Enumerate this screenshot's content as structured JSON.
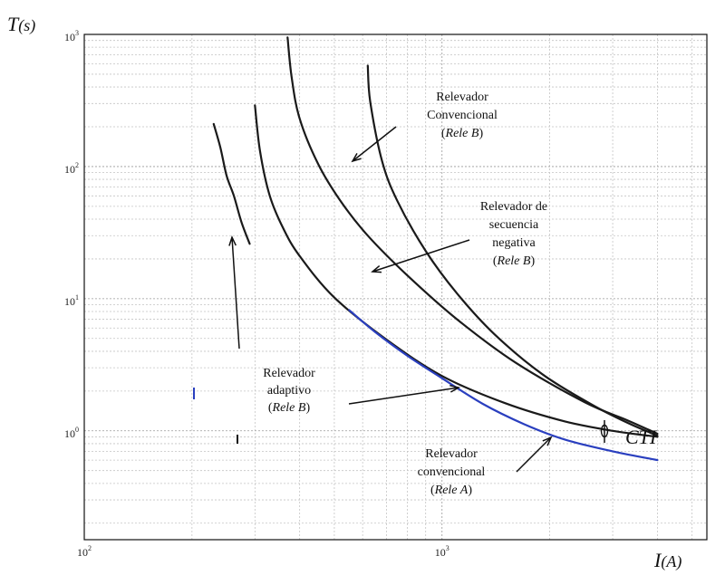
{
  "chart_data": {
    "type": "line",
    "x_scale": "log",
    "y_scale": "log",
    "xlim": [
      100,
      5500
    ],
    "ylim": [
      0.15,
      1000
    ],
    "grid": true,
    "ylabel": {
      "main": "T",
      "unit": "(s)"
    },
    "xlabel": {
      "main": "I",
      "unit": "(A)"
    },
    "x_ticks": [
      {
        "value": 100,
        "base": "10",
        "exp": "2"
      },
      {
        "value": 1000,
        "base": "10",
        "exp": "3"
      }
    ],
    "y_ticks": [
      {
        "value": 1,
        "base": "10",
        "exp": "0"
      },
      {
        "value": 10,
        "base": "10",
        "exp": "1"
      },
      {
        "value": 100,
        "base": "10",
        "exp": "2"
      },
      {
        "value": 1000,
        "base": "10",
        "exp": "3"
      }
    ],
    "series": [
      {
        "color": "#1a1a1a",
        "points": [
          [
            230,
            210
          ],
          [
            240,
            140
          ],
          [
            250,
            85
          ],
          [
            262,
            60
          ],
          [
            275,
            38
          ],
          [
            290,
            26
          ]
        ]
      },
      {
        "color": "#1a1a1a",
        "points": [
          [
            300,
            290
          ],
          [
            310,
            130
          ],
          [
            330,
            60
          ],
          [
            360,
            34
          ],
          [
            400,
            21
          ],
          [
            500,
            10.2
          ],
          [
            700,
            4.9
          ],
          [
            1000,
            2.6
          ],
          [
            1500,
            1.62
          ],
          [
            2200,
            1.18
          ],
          [
            3000,
            1.0
          ],
          [
            4000,
            0.9
          ]
        ]
      },
      {
        "color": "#1a1a1a",
        "points": [
          [
            370,
            950
          ],
          [
            380,
            470
          ],
          [
            400,
            230
          ],
          [
            450,
            105
          ],
          [
            520,
            55
          ],
          [
            620,
            30
          ],
          [
            800,
            15
          ],
          [
            1100,
            7
          ],
          [
            1600,
            3.3
          ],
          [
            2500,
            1.65
          ],
          [
            3300,
            1.2
          ],
          [
            4000,
            0.95
          ]
        ]
      },
      {
        "color": "#1a1a1a",
        "points": [
          [
            620,
            580
          ],
          [
            630,
            310
          ],
          [
            680,
            110
          ],
          [
            750,
            55
          ],
          [
            900,
            23
          ],
          [
            1100,
            11
          ],
          [
            1400,
            5.4
          ],
          [
            1900,
            2.7
          ],
          [
            2600,
            1.6
          ],
          [
            3300,
            1.15
          ],
          [
            4000,
            0.92
          ]
        ]
      },
      {
        "color": "#2a3fbf",
        "points": [
          [
            550,
            8.2
          ],
          [
            650,
            5.6
          ],
          [
            800,
            3.7
          ],
          [
            1000,
            2.5
          ],
          [
            1300,
            1.6
          ],
          [
            1700,
            1.12
          ],
          [
            2200,
            0.86
          ],
          [
            3000,
            0.7
          ],
          [
            4000,
            0.6
          ]
        ]
      }
    ],
    "annotations": [
      {
        "lines": [
          {
            "text": "Relevador"
          },
          {
            "text": "Convencional"
          },
          {
            "text": "(",
            "parts": [
              {
                "text": "(",
                "italic": false
              },
              {
                "text": "Rele B",
                "italic": true
              },
              {
                "text": ")",
                "italic": false
              }
            ]
          }
        ]
      },
      {
        "lines": [
          {
            "text": "Relevador de"
          },
          {
            "text": "secuencia"
          },
          {
            "text": "negativa"
          },
          {
            "text": "(Rele B)",
            "parts": [
              {
                "text": "(",
                "italic": false
              },
              {
                "text": "Rele B",
                "italic": true
              },
              {
                "text": ")",
                "italic": false
              }
            ]
          }
        ]
      },
      {
        "lines": [
          {
            "text": "Relevador"
          },
          {
            "text": "adaptivo"
          },
          {
            "text": "(Rele B)",
            "parts": [
              {
                "text": "(",
                "italic": false
              },
              {
                "text": "Rele B",
                "italic": true
              },
              {
                "text": ")",
                "italic": false
              }
            ]
          }
        ]
      },
      {
        "lines": [
          {
            "text": "Relevador"
          },
          {
            "text": "convencional"
          },
          {
            "text": "(Rele A)",
            "parts": [
              {
                "text": "(",
                "italic": false
              },
              {
                "text": "Rele A",
                "italic": true
              },
              {
                "text": ")",
                "italic": false
              }
            ]
          }
        ]
      }
    ],
    "cti_label": "CTI"
  }
}
